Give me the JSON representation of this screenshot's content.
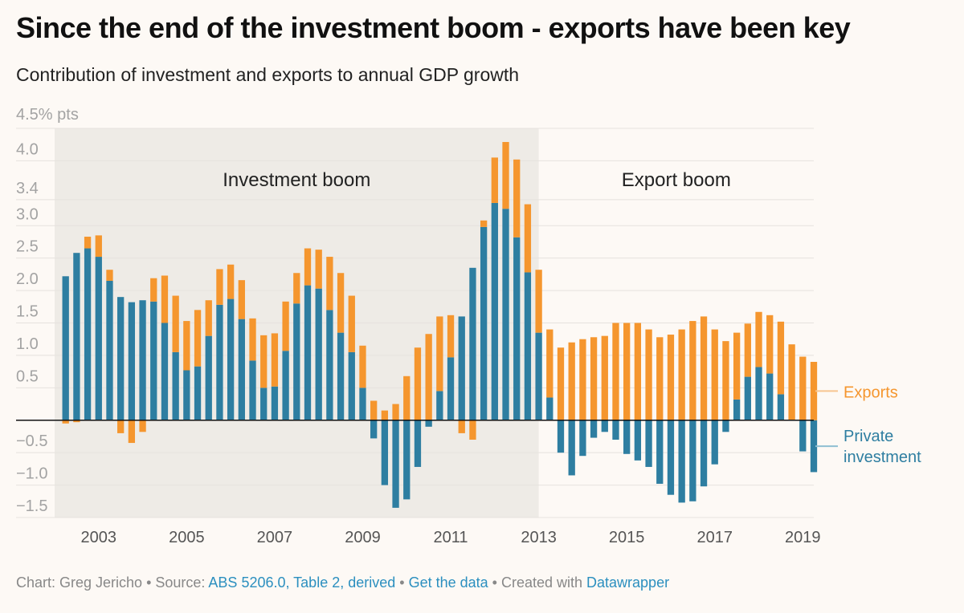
{
  "header": {
    "title": "Since the end of the investment boom - exports have been key",
    "subtitle": "Contribution of investment and exports to annual GDP growth"
  },
  "footer": {
    "chart_by": "Chart: Greg Jericho",
    "sep1": " • Source: ",
    "source_link": "ABS 5206.0, Table 2, derived",
    "sep2": " • ",
    "data_link": "Get the data",
    "sep3": " • Created with ",
    "tool_link": "Datawrapper"
  },
  "colors": {
    "exports": "#f5962e",
    "private_investment": "#2e7ea1",
    "shade": "#eeebe6",
    "grid": "#e6e2de",
    "axis_text": "#a3a3a3",
    "footer_link": "#2b8fbf"
  },
  "chart_data": {
    "type": "bar",
    "stacked": true,
    "unit_label": "4.5% pts",
    "ylim": [
      -1.5,
      4.5
    ],
    "yticks": [
      {
        "value": 4.0,
        "label": "4.0"
      },
      {
        "value": 3.4,
        "label": "3.4"
      },
      {
        "value": 3.0,
        "label": "3.0"
      },
      {
        "value": 2.5,
        "label": "2.5"
      },
      {
        "value": 2.0,
        "label": "2.0"
      },
      {
        "value": 1.5,
        "label": "1.5"
      },
      {
        "value": 1.0,
        "label": "1.0"
      },
      {
        "value": 0.5,
        "label": "0.5"
      },
      {
        "value": -0.5,
        "label": "−0.5"
      },
      {
        "value": -1.0,
        "label": "−1.0"
      },
      {
        "value": -1.5,
        "label": "−1.5"
      }
    ],
    "x_start": 2002.0,
    "x_end": 2019.25,
    "xticks": [
      {
        "value": 2003,
        "label": "2003"
      },
      {
        "value": 2005,
        "label": "2005"
      },
      {
        "value": 2007,
        "label": "2007"
      },
      {
        "value": 2009,
        "label": "2009"
      },
      {
        "value": 2011,
        "label": "2011"
      },
      {
        "value": 2013,
        "label": "2013"
      },
      {
        "value": 2015,
        "label": "2015"
      },
      {
        "value": 2017,
        "label": "2017"
      },
      {
        "value": 2019,
        "label": "2019"
      }
    ],
    "periods": [
      {
        "label": "Investment boom",
        "from": 2002.0,
        "to": 2013.0,
        "shaded": true
      },
      {
        "label": "Export boom",
        "from": 2013.0,
        "to": 2019.25,
        "shaded": false
      }
    ],
    "quarter_start": 2002.25,
    "series": [
      {
        "name": "Private investment",
        "values": [
          2.22,
          2.58,
          2.65,
          2.52,
          2.15,
          1.9,
          1.82,
          1.85,
          1.83,
          1.5,
          1.05,
          0.77,
          0.83,
          1.3,
          1.78,
          1.87,
          1.56,
          0.92,
          0.5,
          0.52,
          1.07,
          1.8,
          2.08,
          2.03,
          1.7,
          1.35,
          1.05,
          0.5,
          -0.28,
          -1.0,
          -1.35,
          -1.22,
          -0.72,
          -0.1,
          0.45,
          0.97,
          1.6,
          2.35,
          2.98,
          3.35,
          3.26,
          2.82,
          2.28,
          1.35,
          0.35,
          -0.5,
          -0.85,
          -0.55,
          -0.27,
          -0.18,
          -0.3,
          -0.52,
          -0.62,
          -0.72,
          -0.98,
          -1.15,
          -1.27,
          -1.25,
          -1.02,
          -0.68,
          -0.18,
          0.32,
          0.67,
          0.82,
          0.72,
          0.4,
          0.0,
          -0.48,
          -0.8
        ]
      },
      {
        "name": "Exports",
        "values": [
          -0.05,
          -0.03,
          0.18,
          0.33,
          0.17,
          -0.2,
          -0.35,
          -0.18,
          0.36,
          0.73,
          0.87,
          0.76,
          0.87,
          0.55,
          0.55,
          0.53,
          0.6,
          0.65,
          0.81,
          0.82,
          0.76,
          0.47,
          0.57,
          0.6,
          0.82,
          0.92,
          0.87,
          0.65,
          0.3,
          0.15,
          0.25,
          0.68,
          1.12,
          1.33,
          1.15,
          0.65,
          -0.2,
          -0.3,
          0.1,
          0.7,
          1.03,
          1.2,
          1.05,
          0.97,
          1.05,
          1.12,
          1.2,
          1.25,
          1.28,
          1.3,
          1.5,
          1.5,
          1.5,
          1.4,
          1.28,
          1.32,
          1.4,
          1.53,
          1.6,
          1.4,
          1.22,
          1.03,
          0.82,
          0.85,
          0.9,
          1.12,
          1.17,
          0.98,
          0.9
        ]
      }
    ],
    "legend": [
      {
        "label": "Exports",
        "position": "right"
      },
      {
        "label": "Private\ninvestment",
        "position": "right"
      }
    ]
  }
}
